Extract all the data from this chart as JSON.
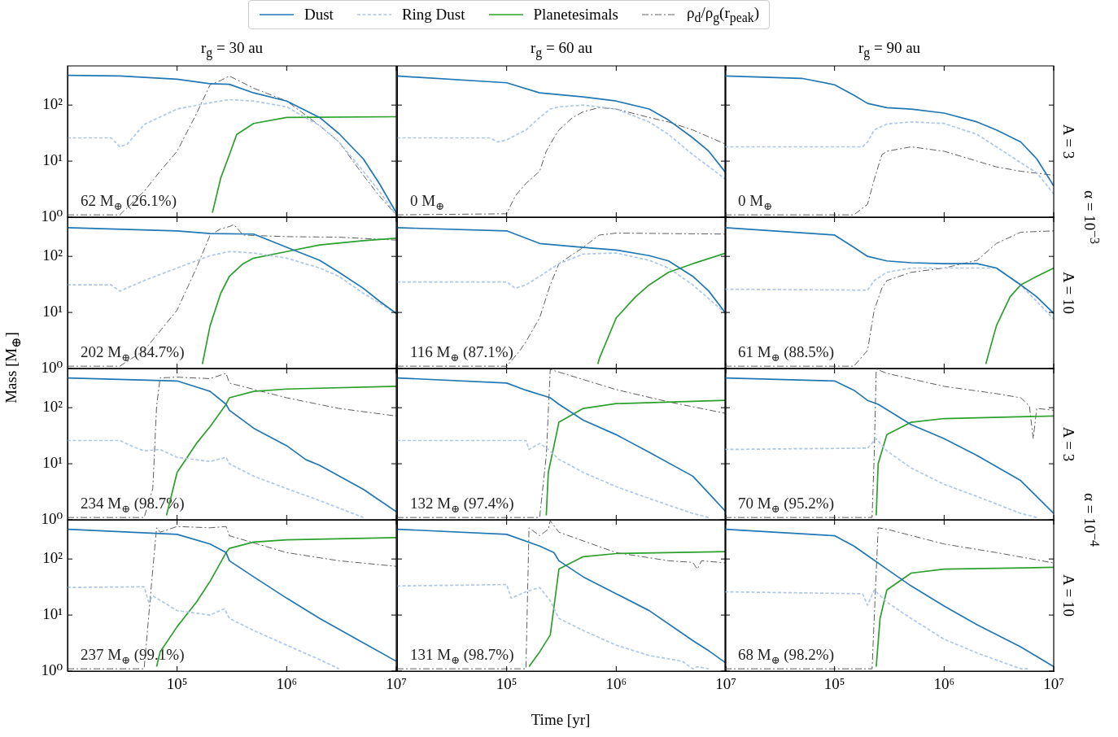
{
  "chart_data": [
    {
      "type": "line",
      "title": "r$_{g}$ = 30 au",
      "legend": "top",
      "tick_labels": "y",
      "log": "xy",
      "grid": false,
      "xlim": [
        10000.0,
        10000000.0
      ],
      "ylim": [
        1,
        500
      ],
      "xticks": [
        100000,
        1000000,
        10000000
      ],
      "yticks": [
        {
          "value": 1,
          "label": "10⁰"
        },
        {
          "value": 10,
          "label": "10¹"
        },
        {
          "value": 100,
          "label": "10²"
        }
      ],
      "annotations": [
        "62 M$_{⊕}$ (26.1%)"
      ],
      "series": [
        {
          "name": "Dust",
          "color": "#1f77b4",
          "line_style": "solid",
          "x": [
            10000.0,
            30000.0,
            100000.0,
            200000.0,
            300000.0,
            500000.0,
            1000000.0,
            2000000.0,
            3000000.0,
            5000000.0,
            7000000.0,
            10000000.0
          ],
          "values": [
            340,
            330,
            290,
            240,
            235,
            165,
            118,
            60,
            31,
            11,
            4,
            1.2
          ]
        },
        {
          "name": "Ring Dust",
          "color": "#aec7e8",
          "line_style": "dashed",
          "x": [
            10000.0,
            25000.0,
            30000.0,
            35000.0,
            50000.0,
            100000.0,
            200000.0,
            300000.0,
            500000.0,
            1000000.0,
            2000000.0,
            3000000.0,
            5000000.0,
            7000000.0,
            10000000.0
          ],
          "values": [
            26,
            26,
            18,
            20,
            45,
            85,
            110,
            125,
            118,
            93,
            43,
            22,
            6.6,
            2.9,
            1.1
          ]
        },
        {
          "name": "Planetesimals",
          "color": "#2ca02c",
          "line_style": "solid",
          "x": [
            210000.0,
            250000.0,
            300000.0,
            350000.0,
            500000.0,
            1000000.0,
            10000000.0
          ],
          "values": [
            1.2,
            5,
            13,
            30,
            47,
            60,
            62
          ]
        },
        {
          "name": "ρ$_{d}$/ρ$_{g}$(r$_{peak}$)",
          "color": "#5f5f5f",
          "line_style": "dashdot",
          "x": [
            10000.0,
            30000.0,
            50000.0,
            70000.0,
            100000.0,
            150000.0,
            200000.0,
            250000.0,
            300000.0,
            500000.0,
            1000000.0,
            2000000.0,
            3000000.0,
            5000000.0,
            7000000.0,
            10000000.0
          ],
          "values": [
            1.1,
            1.1,
            2.9,
            6.6,
            15,
            70,
            230,
            275,
            330,
            200,
            118,
            43,
            22,
            5.6,
            2.4,
            1.1
          ]
        }
      ]
    },
    {
      "type": "line",
      "title": "r$_{g}$ = 60 au",
      "tick_labels": false,
      "log": "xy",
      "grid": false,
      "xlim": [
        10000.0,
        10000000.0
      ],
      "ylim": [
        1,
        500
      ],
      "xticks": [
        100000,
        1000000,
        10000000
      ],
      "yticks": [
        1,
        10,
        100
      ],
      "annotations": [
        "0 M$_{⊕}$"
      ],
      "series": [
        {
          "color": "#1f77b4",
          "line_style": "solid",
          "x": [
            10000.0,
            100000.0,
            200000.0,
            500000.0,
            1000000.0,
            2000000.0,
            3000000.0,
            5000000.0,
            7000000.0,
            10000000.0
          ],
          "values": [
            330,
            250,
            165,
            140,
            118,
            85,
            54,
            26,
            15,
            6.2
          ]
        },
        {
          "color": "#aec7e8",
          "line_style": "dashed",
          "x": [
            10000.0,
            70000.0,
            83000.0,
            100000.0,
            150000.0,
            200000.0,
            250000.0,
            300000.0,
            500000.0,
            1000000.0,
            2000000.0,
            3000000.0,
            5000000.0,
            7000000.0,
            10000000.0
          ],
          "values": [
            26,
            26,
            22,
            24,
            36,
            60,
            85,
            93,
            100,
            85,
            50,
            30,
            13,
            8,
            4.7
          ]
        },
        {
          "color": "#5f5f5f",
          "line_style": "dashdot",
          "x": [
            10000.0,
            100000.0,
            120000.0,
            150000.0,
            200000.0,
            230000.0,
            270000.0,
            300000.0,
            400000.0,
            500000.0,
            700000.0,
            1000000.0,
            2000000.0,
            3000000.0,
            5000000.0,
            10000000.0
          ],
          "values": [
            1.1,
            1.15,
            2.4,
            4,
            6.6,
            15,
            26,
            36,
            60,
            76,
            90,
            85,
            60,
            50,
            36,
            20
          ]
        }
      ]
    },
    {
      "type": "line",
      "title": "r$_{g}$ = 90 au",
      "y2label": "A = 3",
      "tick_labels": false,
      "log": "xy",
      "grid": false,
      "xlim": [
        10000.0,
        10000000.0
      ],
      "ylim": [
        1,
        500
      ],
      "xticks": [
        100000,
        1000000,
        10000000
      ],
      "yticks": [
        1,
        10,
        100
      ],
      "annotations": [
        "0 M$_{⊕}$",
        "α = 10$^{−3}$"
      ],
      "series": [
        {
          "color": "#1f77b4",
          "line_style": "solid",
          "x": [
            10000.0,
            50000.0,
            100000.0,
            150000.0,
            200000.0,
            300000.0,
            500000.0,
            1000000.0,
            2000000.0,
            3000000.0,
            5000000.0,
            7000000.0,
            10000000.0
          ],
          "values": [
            330,
            300,
            230,
            150,
            107,
            90,
            85,
            72,
            50,
            36,
            22,
            11,
            3.6
          ]
        },
        {
          "color": "#aec7e8",
          "line_style": "dashed",
          "x": [
            10000.0,
            180000.0,
            200000.0,
            230000.0,
            300000.0,
            500000.0,
            1000000.0,
            2000000.0,
            3000000.0,
            5000000.0,
            7000000.0,
            10000000.0
          ],
          "values": [
            18,
            18,
            22,
            36,
            46,
            50,
            47,
            30,
            18,
            9.4,
            6.2,
            2.6
          ]
        },
        {
          "color": "#5f5f5f",
          "line_style": "dashdot",
          "x": [
            10000.0,
            150000.0,
            200000.0,
            230000.0,
            270000.0,
            300000.0,
            500000.0,
            1000000.0,
            2000000.0,
            3000000.0,
            5000000.0,
            10000000.0
          ],
          "values": [
            1.1,
            1.1,
            1.7,
            4.7,
            13,
            15,
            18,
            15,
            10,
            7.9,
            6.6,
            5.6
          ]
        }
      ]
    },
    {
      "type": "line",
      "ylabel": "Mass [M$_{⊕}$]",
      "tick_labels": "y",
      "log": "xy",
      "grid": false,
      "xlim": [
        10000.0,
        10000000.0
      ],
      "ylim": [
        1,
        500
      ],
      "xticks": [
        100000,
        1000000,
        10000000
      ],
      "yticks": [
        {
          "value": 1,
          "label": "10⁰"
        },
        {
          "value": 10,
          "label": "10¹"
        },
        {
          "value": 100,
          "label": "10²"
        }
      ],
      "annotations": [
        "202 M$_{⊕}$ (84.7%)"
      ],
      "series": [
        {
          "color": "#1f77b4",
          "line_style": "solid",
          "x": [
            10000.0,
            100000.0,
            200000.0,
            500000.0,
            1000000.0,
            2000000.0,
            3000000.0,
            5000000.0,
            7000000.0,
            10000000.0
          ],
          "values": [
            325,
            285,
            255,
            250,
            145,
            85,
            52,
            27,
            16,
            9.6
          ]
        },
        {
          "color": "#aec7e8",
          "line_style": "dashed",
          "x": [
            10000.0,
            25000.0,
            30000.0,
            50000.0,
            100000.0,
            200000.0,
            300000.0,
            500000.0,
            1000000.0,
            2000000.0,
            3000000.0,
            5000000.0,
            10000000.0
          ],
          "values": [
            31,
            31,
            24,
            37,
            62,
            103,
            122,
            115,
            93,
            62,
            44,
            22,
            9.6
          ]
        },
        {
          "color": "#2ca02c",
          "line_style": "solid",
          "x": [
            170000.0,
            200000.0,
            250000.0,
            300000.0,
            400000.0,
            500000.0,
            1000000.0,
            2000000.0,
            5000000.0,
            10000000.0
          ],
          "values": [
            1.2,
            5.8,
            22,
            44,
            74,
            93,
            122,
            160,
            190,
            210
          ]
        },
        {
          "color": "#5f5f5f",
          "line_style": "dashdot",
          "x": [
            10000.0,
            30000.0,
            50000.0,
            100000.0,
            150000.0,
            200000.0,
            250000.0,
            300000.0,
            330000.0,
            400000.0,
            1000000.0,
            3000000.0,
            10000000.0
          ],
          "values": [
            1.1,
            1.1,
            2.1,
            11,
            62,
            240,
            310,
            340,
            370,
            240,
            225,
            220,
            195
          ]
        }
      ]
    },
    {
      "type": "line",
      "tick_labels": false,
      "log": "xy",
      "grid": false,
      "xlim": [
        10000.0,
        10000000.0
      ],
      "ylim": [
        1,
        500
      ],
      "xticks": [
        100000,
        1000000,
        10000000
      ],
      "yticks": [
        1,
        10,
        100
      ],
      "annotations": [
        "116 M$_{⊕}$ (87.1%)"
      ],
      "series": [
        {
          "color": "#1f77b4",
          "line_style": "solid",
          "x": [
            10000.0,
            100000.0,
            200000.0,
            500000.0,
            1000000.0,
            2000000.0,
            3000000.0,
            5000000.0,
            7000000.0,
            10000000.0
          ],
          "values": [
            325,
            285,
            170,
            145,
            130,
            103,
            83,
            44,
            24,
            9.6
          ]
        },
        {
          "color": "#aec7e8",
          "line_style": "dashed",
          "x": [
            10000.0,
            100000.0,
            120000.0,
            150000.0,
            200000.0,
            300000.0,
            500000.0,
            1000000.0,
            2000000.0,
            3000000.0,
            5000000.0,
            10000000.0
          ],
          "values": [
            35,
            35,
            27,
            31,
            44,
            74,
            110,
            115,
            85,
            62,
            31,
            9.6
          ]
        },
        {
          "color": "#2ca02c",
          "line_style": "solid",
          "x": [
            680000.0,
            700000.0,
            1000000.0,
            1500000.0,
            2000000.0,
            3000000.0,
            5000000.0,
            10000000.0
          ],
          "values": [
            1.2,
            1.5,
            8,
            19,
            31,
            52,
            74,
            115
          ]
        },
        {
          "color": "#5f5f5f",
          "line_style": "dashdot",
          "x": [
            10000.0,
            100000.0,
            130000.0,
            150000.0,
            200000.0,
            250000.0,
            300000.0,
            500000.0,
            700000.0,
            1000000.0,
            10000000.0
          ],
          "values": [
            1.1,
            1.1,
            2,
            3,
            8,
            31,
            74,
            145,
            240,
            260,
            250
          ]
        }
      ]
    },
    {
      "type": "line",
      "y2label": "A = 10",
      "tick_labels": false,
      "log": "xy",
      "grid": false,
      "xlim": [
        10000.0,
        10000000.0
      ],
      "ylim": [
        1,
        500
      ],
      "xticks": [
        100000,
        1000000,
        10000000
      ],
      "yticks": [
        1,
        10,
        100
      ],
      "annotations": [
        "61 M$_{⊕}$ (88.5%)"
      ],
      "series": [
        {
          "color": "#1f77b4",
          "line_style": "solid",
          "x": [
            10000.0,
            100000.0,
            150000.0,
            200000.0,
            300000.0,
            500000.0,
            1000000.0,
            2000000.0,
            3000000.0,
            5000000.0,
            7000000.0,
            10000000.0
          ],
          "values": [
            325,
            240,
            145,
            100,
            83,
            77,
            74,
            74,
            62,
            31,
            19,
            9.6
          ]
        },
        {
          "color": "#aec7e8",
          "line_style": "dashed",
          "x": [
            10000.0,
            200000.0,
            230000.0,
            300000.0,
            500000.0,
            1000000.0,
            3000000.0,
            5000000.0,
            10000000.0
          ],
          "values": [
            26,
            25,
            37,
            52,
            62,
            62,
            62,
            31,
            7.6
          ]
        },
        {
          "color": "#2ca02c",
          "line_style": "solid",
          "x": [
            2400000.0,
            3000000.0,
            4000000.0,
            5000000.0,
            7000000.0,
            10000000.0
          ],
          "values": [
            1.2,
            5.8,
            19,
            31,
            44,
            62
          ]
        },
        {
          "color": "#5f5f5f",
          "line_style": "dashdot",
          "x": [
            10000.0,
            150000.0,
            200000.0,
            230000.0,
            270000.0,
            300000.0,
            500000.0,
            1000000.0,
            2000000.0,
            3000000.0,
            5000000.0,
            10000000.0
          ],
          "values": [
            1.1,
            1.1,
            2.1,
            11,
            27,
            37,
            52,
            62,
            85,
            170,
            270,
            285
          ]
        }
      ]
    },
    {
      "type": "line",
      "tick_labels": "y",
      "log": "xy",
      "grid": false,
      "xlim": [
        10000.0,
        10000000.0
      ],
      "ylim": [
        1,
        500
      ],
      "xticks": [
        100000,
        1000000,
        10000000
      ],
      "yticks": [
        {
          "value": 1,
          "label": "10⁰"
        },
        {
          "value": 10,
          "label": "10¹"
        },
        {
          "value": 100,
          "label": "10²"
        }
      ],
      "annotations": [
        "234 M$_{⊕}$ (98.7%)"
      ],
      "series": [
        {
          "color": "#1f77b4",
          "line_style": "solid",
          "x": [
            10000.0,
            100000.0,
            200000.0,
            280000.0,
            300000.0,
            500000.0,
            1000000.0,
            1500000.0,
            2000000.0,
            5000000.0,
            10000000.0
          ],
          "values": [
            340,
            300,
            195,
            115,
            90,
            43,
            21,
            11.8,
            9.4,
            3.5,
            1.4
          ]
        },
        {
          "color": "#aec7e8",
          "line_style": "dashed",
          "x": [
            10000.0,
            30000.0,
            40000.0,
            50000.0,
            70000.0,
            100000.0,
            200000.0,
            280000.0,
            300000.0,
            500000.0,
            1000000.0,
            2000000.0,
            5000000.0
          ],
          "values": [
            26,
            26,
            20,
            17,
            18,
            13,
            11,
            13,
            10,
            6,
            3.6,
            2.2,
            1.1
          ]
        },
        {
          "color": "#2ca02c",
          "line_style": "solid",
          "x": [
            80000.0,
            100000.0,
            150000.0,
            200000.0,
            280000.0,
            300000.0,
            500000.0,
            1000000.0,
            10000000.0
          ],
          "values": [
            1.2,
            7,
            23,
            46,
            115,
            150,
            195,
            215,
            240
          ]
        },
        {
          "color": "#5f5f5f",
          "line_style": "dashdot",
          "x": [
            10000.0,
            50000.0,
            60000.0,
            65000.0,
            70000.0,
            100000.0,
            200000.0,
            280000.0,
            300000.0,
            1000000.0,
            3000000.0,
            10000000.0
          ],
          "values": [
            1.1,
            1.1,
            3.6,
            107,
            340,
            350,
            330,
            410,
            275,
            150,
            97,
            71
          ]
        }
      ]
    },
    {
      "type": "line",
      "tick_labels": false,
      "log": "xy",
      "grid": false,
      "xlim": [
        10000.0,
        10000000.0
      ],
      "ylim": [
        1,
        500
      ],
      "xticks": [
        100000,
        1000000,
        10000000
      ],
      "yticks": [
        1,
        10,
        100
      ],
      "annotations": [
        "132 M$_{⊕}$ (97.4%)"
      ],
      "series": [
        {
          "color": "#1f77b4",
          "line_style": "solid",
          "x": [
            10000.0,
            100000.0,
            150000.0,
            250000.0,
            300000.0,
            500000.0,
            1000000.0,
            2000000.0,
            5000000.0,
            10000000.0
          ],
          "values": [
            340,
            275,
            205,
            150,
            115,
            60,
            33,
            16,
            6,
            1.4
          ]
        },
        {
          "color": "#aec7e8",
          "line_style": "dashed",
          "x": [
            10000.0,
            150000.0,
            160000.0,
            200000.0,
            240000.0,
            300000.0,
            500000.0,
            1000000.0,
            2000000.0,
            5000000.0,
            7000000.0
          ],
          "values": [
            26,
            26,
            18,
            23,
            18,
            12,
            7,
            3.9,
            2.4,
            1.3,
            1.1
          ]
        },
        {
          "color": "#2ca02c",
          "line_style": "solid",
          "x": [
            230000.0,
            240000.0,
            300000.0,
            500000.0,
            1000000.0,
            10000000.0
          ],
          "values": [
            1.2,
            7,
            55,
            97,
            118,
            135
          ]
        },
        {
          "color": "#5f5f5f",
          "line_style": "dashdot",
          "x": [
            10000.0,
            200000.0,
            230000.0,
            250000.0,
            1000000.0,
            3000000.0,
            10000000.0
          ],
          "values": [
            1.1,
            1.1,
            14,
            480,
            210,
            127,
            79
          ]
        }
      ]
    },
    {
      "type": "line",
      "y2label": "A = 3",
      "tick_labels": false,
      "log": "xy",
      "grid": false,
      "xlim": [
        10000.0,
        10000000.0
      ],
      "ylim": [
        1,
        500
      ],
      "xticks": [
        100000,
        1000000,
        10000000
      ],
      "yticks": [
        1,
        10,
        100
      ],
      "annotations": [
        "70 M$_{⊕}$ (95.2%)",
        "α = 10$^{−4}$"
      ],
      "series": [
        {
          "color": "#1f77b4",
          "line_style": "solid",
          "x": [
            10000.0,
            100000.0,
            150000.0,
            200000.0,
            250000.0,
            500000.0,
            1000000.0,
            2000000.0,
            5000000.0,
            7000000.0,
            10000000.0
          ],
          "values": [
            340,
            300,
            205,
            135,
            115,
            50,
            28,
            14,
            5,
            2.6,
            1.3
          ]
        },
        {
          "color": "#aec7e8",
          "line_style": "dashed",
          "x": [
            10000.0,
            200000.0,
            240000.0,
            300000.0,
            500000.0,
            1000000.0,
            2000000.0,
            5000000.0,
            7000000.0
          ],
          "values": [
            18,
            19,
            28,
            17,
            8.4,
            4.3,
            2.6,
            1.3,
            1.1
          ]
        },
        {
          "color": "#2ca02c",
          "line_style": "solid",
          "x": [
            240000.0,
            250000.0,
            300000.0,
            500000.0,
            1000000.0,
            10000000.0
          ],
          "values": [
            1.2,
            10,
            33,
            55,
            64,
            71
          ]
        },
        {
          "color": "#5f5f5f",
          "line_style": "dashdot",
          "x": [
            10000.0,
            220000.0,
            230000.0,
            240000.0,
            300000.0,
            1000000.0,
            3000000.0,
            5000000.0,
            6000000.0,
            6500000.0,
            7000000.0,
            10000000.0
          ],
          "values": [
            1.1,
            1.1,
            14,
            490,
            410,
            240,
            178,
            150,
            107,
            28,
            97,
            90
          ]
        }
      ]
    },
    {
      "type": "line",
      "log": "xy",
      "grid": false,
      "xlim": [
        10000.0,
        10000000.0
      ],
      "ylim": [
        1,
        500
      ],
      "xticks": [
        {
          "value": 100000.0,
          "label": "10⁵"
        },
        {
          "value": 1000000.0,
          "label": "10⁶"
        },
        {
          "value": 10000000.0,
          "label": "10⁷"
        }
      ],
      "yticks": [
        {
          "value": 1,
          "label": "10⁰"
        },
        {
          "value": 10,
          "label": "10¹"
        },
        {
          "value": 100,
          "label": "10²"
        }
      ],
      "annotations": [
        "237 M$_{⊕}$ (99.1%)"
      ],
      "series": [
        {
          "color": "#1f77b4",
          "line_style": "solid",
          "x": [
            10000.0,
            100000.0,
            200000.0,
            280000.0,
            300000.0,
            500000.0,
            1000000.0,
            2000000.0,
            5000000.0,
            10000000.0
          ],
          "values": [
            340,
            275,
            185,
            130,
            93,
            48,
            20,
            8.7,
            3.2,
            1.5
          ]
        },
        {
          "color": "#aec7e8",
          "line_style": "dashed",
          "x": [
            10000.0,
            50000.0,
            55000.0,
            60000.0,
            100000.0,
            200000.0,
            270000.0,
            300000.0,
            500000.0,
            1000000.0,
            2000000.0,
            3000000.0
          ],
          "values": [
            31,
            32,
            17,
            22,
            12,
            10,
            13,
            8.7,
            5.3,
            2.9,
            1.6,
            1.1
          ]
        },
        {
          "color": "#2ca02c",
          "line_style": "solid",
          "x": [
            65000.0,
            70000.0,
            100000.0,
            150000.0,
            200000.0,
            280000.0,
            300000.0,
            500000.0,
            1000000.0,
            10000000.0
          ],
          "values": [
            1.2,
            2.2,
            6.2,
            17,
            40,
            130,
            155,
            200,
            220,
            240
          ]
        },
        {
          "color": "#5f5f5f",
          "line_style": "dashdot",
          "x": [
            10000.0,
            50000.0,
            60000.0,
            65000.0,
            70000.0,
            100000.0,
            200000.0,
            280000.0,
            300000.0,
            1000000.0,
            3000000.0,
            10000000.0
          ],
          "values": [
            1.1,
            1.1,
            66,
            360,
            300,
            380,
            360,
            380,
            260,
            130,
            93,
            74
          ]
        }
      ]
    },
    {
      "type": "line",
      "xlabel": "Time [yr]",
      "tick_labels": "x",
      "log": "xy",
      "grid": false,
      "xlim": [
        10000.0,
        10000000.0
      ],
      "ylim": [
        1,
        500
      ],
      "xticks": [
        {
          "value": 100000.0,
          "label": "10⁵"
        },
        {
          "value": 1000000.0,
          "label": "10⁶"
        },
        {
          "value": 10000000.0,
          "label": "10⁷"
        }
      ],
      "yticks": [
        1,
        10,
        100
      ],
      "annotations": [
        "131 M$_{⊕}$ (98.7%)"
      ],
      "series": [
        {
          "color": "#1f77b4",
          "line_style": "solid",
          "x": [
            10000.0,
            100000.0,
            200000.0,
            270000.0,
            300000.0,
            500000.0,
            1000000.0,
            2000000.0,
            5000000.0,
            7000000.0,
            10000000.0
          ],
          "values": [
            340,
            275,
            170,
            130,
            93,
            48,
            24,
            12,
            3.5,
            2.3,
            1.4
          ]
        },
        {
          "color": "#aec7e8",
          "line_style": "dashed",
          "x": [
            10000.0,
            100000.0,
            110000.0,
            150000.0,
            200000.0,
            250000.0,
            300000.0,
            500000.0,
            1000000.0,
            2000000.0,
            4000000.0,
            5000000.0,
            5500000.0,
            7000000.0
          ],
          "values": [
            33,
            35,
            20,
            26,
            31,
            18,
            8.7,
            5.3,
            2.9,
            1.9,
            1.5,
            1.1,
            1.2,
            1.1
          ]
        },
        {
          "color": "#2ca02c",
          "line_style": "solid",
          "x": [
            160000.0,
            200000.0,
            250000.0,
            300000.0,
            500000.0,
            1000000.0,
            10000000.0
          ],
          "values": [
            1.2,
            2.2,
            4.4,
            66,
            110,
            125,
            135
          ]
        },
        {
          "color": "#5f5f5f",
          "line_style": "dashdot",
          "x": [
            10000.0,
            150000.0,
            160000.0,
            200000.0,
            240000.0,
            250000.0,
            300000.0,
            1000000.0,
            3000000.0,
            5000000.0,
            5500000.0,
            6000000.0,
            10000000.0
          ],
          "values": [
            1.1,
            1.1,
            360,
            260,
            340,
            480,
            300,
            130,
            93,
            87,
            66,
            93,
            85
          ]
        }
      ]
    },
    {
      "type": "line",
      "y2label": "A = 10",
      "tick_labels": "x",
      "log": "xy",
      "grid": false,
      "xlim": [
        10000.0,
        10000000.0
      ],
      "ylim": [
        1,
        500
      ],
      "xticks": [
        {
          "value": 100000.0,
          "label": "10⁵"
        },
        {
          "value": 1000000.0,
          "label": "10⁶"
        },
        {
          "value": 10000000.0,
          "label": "10⁷"
        }
      ],
      "yticks": [
        1,
        10,
        100
      ],
      "annotations": [
        "68 M$_{⊕}$ (98.2%)"
      ],
      "series": [
        {
          "color": "#1f77b4",
          "line_style": "solid",
          "x": [
            10000.0,
            100000.0,
            150000.0,
            200000.0,
            300000.0,
            500000.0,
            1000000.0,
            2000000.0,
            5000000.0,
            10000000.0
          ],
          "values": [
            340,
            260,
            170,
            115,
            66,
            33,
            14.5,
            6.7,
            2.7,
            1.2
          ]
        },
        {
          "color": "#aec7e8",
          "line_style": "dashed",
          "x": [
            10000.0,
            180000.0,
            200000.0,
            230000.0,
            300000.0,
            500000.0,
            1000000.0,
            2000000.0,
            5000000.0,
            6000000.0
          ],
          "values": [
            26,
            24,
            15,
            28,
            17,
            8.7,
            3.7,
            2.1,
            1.1,
            1.1
          ]
        },
        {
          "color": "#2ca02c",
          "line_style": "solid",
          "x": [
            240000.0,
            260000.0,
            300000.0,
            500000.0,
            1000000.0,
            10000000.0
          ],
          "values": [
            1.2,
            8.7,
            28,
            56,
            66,
            71
          ]
        },
        {
          "color": "#5f5f5f",
          "line_style": "dashdot",
          "x": [
            10000.0,
            220000.0,
            230000.0,
            250000.0,
            300000.0,
            1000000.0,
            3000000.0,
            10000000.0
          ],
          "values": [
            1.1,
            1.1,
            8.7,
            360,
            340,
            185,
            130,
            85
          ]
        }
      ]
    }
  ]
}
